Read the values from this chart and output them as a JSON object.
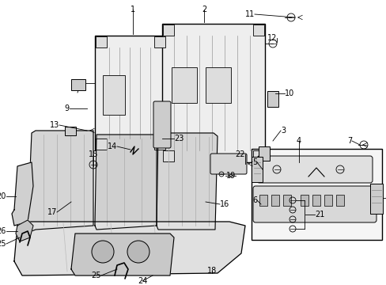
{
  "bg_color": "#ffffff",
  "fig_width": 4.89,
  "fig_height": 3.6,
  "dpi": 100,
  "label_fontsize": 7.0,
  "line_color": "#000000",
  "part_color": "#e8e8e8",
  "part_color2": "#d0d0d0",
  "part_color3": "#c0c0c0",
  "box_color": "#f8f8f8"
}
